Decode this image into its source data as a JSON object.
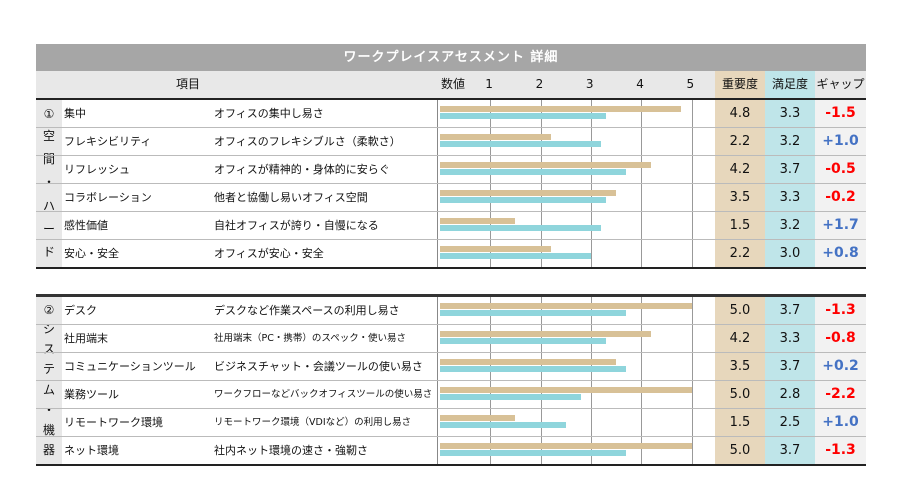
{
  "title": "ワークプレイスアセスメント 詳細",
  "header": {
    "item": "項目",
    "value": "数値",
    "ticks": [
      "1",
      "2",
      "3",
      "4",
      "5"
    ],
    "importance": "重要度",
    "satisfaction": "満足度",
    "gap": "ギャップ"
  },
  "colors": {
    "importance_bar": "#d8c197",
    "satisfaction_bar": "#8fd5dc",
    "negative_gap": "#ff0000",
    "positive_gap": "#4472c4"
  },
  "chart_data": {
    "type": "bar",
    "orientation": "horizontal",
    "xlim": [
      0,
      5.5
    ],
    "ticks": [
      1,
      2,
      3,
      4,
      5
    ],
    "grid": true,
    "series_names": [
      "重要度",
      "満足度"
    ],
    "sections": [
      {
        "label": [
          "①",
          "空",
          "間",
          "・",
          "ハ",
          "ー",
          "ド"
        ],
        "rows": [
          {
            "item": "集中",
            "desc": "オフィスの集中し易さ",
            "importance": 4.8,
            "satisfaction": 3.3,
            "gap": "-1.5"
          },
          {
            "item": "フレキシビリティ",
            "desc": "オフィスのフレキシブルさ（柔軟さ）",
            "importance": 2.2,
            "satisfaction": 3.2,
            "gap": "+1.0"
          },
          {
            "item": "リフレッシュ",
            "desc": "オフィスが精神的・身体的に安らぐ",
            "importance": 4.2,
            "satisfaction": 3.7,
            "gap": "-0.5"
          },
          {
            "item": "コラボレーション",
            "desc": "他者と協働し易いオフィス空間",
            "importance": 3.5,
            "satisfaction": 3.3,
            "gap": "-0.2"
          },
          {
            "item": "感性価値",
            "desc": "自社オフィスが誇り・自慢になる",
            "importance": 1.5,
            "satisfaction": 3.2,
            "gap": "+1.7"
          },
          {
            "item": "安心・安全",
            "desc": "オフィスが安心・安全",
            "importance": 2.2,
            "satisfaction": 3.0,
            "gap": "+0.8"
          }
        ]
      },
      {
        "label": [
          "②",
          "シ",
          "ス",
          "テ",
          "ム",
          "・",
          "機",
          "器"
        ],
        "rows": [
          {
            "item": "デスク",
            "desc": "デスクなど作業スペースの利用し易さ",
            "importance": 5.0,
            "satisfaction": 3.7,
            "gap": "-1.3"
          },
          {
            "item": "社用端末",
            "desc": "社用端末（PC・携帯）のスペック・使い易さ",
            "importance": 4.2,
            "satisfaction": 3.3,
            "gap": "-0.8"
          },
          {
            "item": "コミュニケーションツール",
            "desc": "ビジネスチャット・会議ツールの使い易さ",
            "importance": 3.5,
            "satisfaction": 3.7,
            "gap": "+0.2"
          },
          {
            "item": "業務ツール",
            "desc": "ワークフローなどバックオフィスツールの使い易さ",
            "importance": 5.0,
            "satisfaction": 2.8,
            "gap": "-2.2"
          },
          {
            "item": "リモートワーク環境",
            "desc": "リモートワーク環境（VDIなど）の利用し易さ",
            "importance": 1.5,
            "satisfaction": 2.5,
            "gap": "+1.0"
          },
          {
            "item": "ネット環境",
            "desc": "社内ネット環境の速さ・強靭さ",
            "importance": 5.0,
            "satisfaction": 3.7,
            "gap": "-1.3"
          }
        ]
      }
    ]
  }
}
